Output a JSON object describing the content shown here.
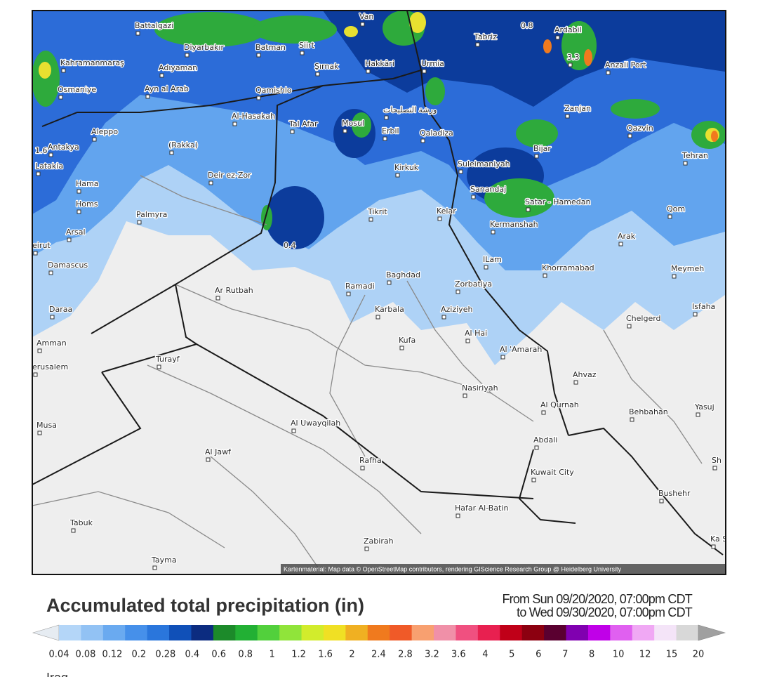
{
  "map": {
    "labels": [
      "Van",
      "Battalgazi",
      "Diyarbakır",
      "Batman",
      "Siirt",
      "Kahramanmaraş",
      "Adıyaman",
      "Şırnak",
      "Hakkâri",
      "Urmia",
      "Tabriz",
      "Ardabil",
      "3.3",
      "Anzali Port",
      "Osmaniye",
      "Ayn al Arab",
      "Qamishlo",
      "Al-Hasakah",
      "Tal Afar",
      "Mosul",
      "ورشة التصليحات",
      "Erbil",
      "Qaladiza",
      "Zanjan",
      "Qazvin",
      "Aleppo",
      "Antakya",
      "(Rakka)",
      "Bijar",
      "Tehran",
      "Latakia",
      "Kirkuk",
      "Suleimaniyah",
      "Deir ez-Zor",
      "Hama",
      "Sanandaj",
      "Homs",
      "Satar - Hamedan",
      "Qom",
      "Palmyra",
      "Tikrit",
      "Kelar",
      "Kermanshah",
      "Arsal",
      "Arak",
      "eirut",
      "Damascus",
      "ILam",
      "Khorramabad",
      "Meymeh",
      "Baghdad",
      "Ramadi",
      "Zorbatiya",
      "Ar Rutbah",
      "Isfaha",
      "Karbala",
      "Aziziyeh",
      "Daraa",
      "Chelgerd",
      "Al Hai",
      "Kufa",
      "Amman",
      "Al 'Amarah",
      "Turayf",
      "erusalem",
      "Ahvaz",
      "Nasiriyah",
      "Al Qurnah",
      "Behbahan",
      "Yasuj",
      "Al Uwayqilah",
      "Musa",
      "Abdali",
      "Al Jawf",
      "Rafha",
      "Sh",
      "Kuwait City",
      "Bushehr",
      "Hafar Al-Batin",
      "Tabuk",
      "Ka Se",
      "Zabirah",
      "Tayma",
      "0.8",
      "1.6",
      "0.4"
    ],
    "attribution": "Kartenmaterial: Map data © OpenStreetMap contributors, rendering GIScience Research Group @ Heidelberg University"
  },
  "legend": {
    "title": "Accumulated total precipitation (in)",
    "period_from": "From Sun 09/20/2020, 07:00pm CDT",
    "period_to": "to Wed 09/30/2020, 07:00pm CDT",
    "colors": [
      "#e6ecf2",
      "#b4d6f8",
      "#92c2f4",
      "#6aaaf0",
      "#4690ea",
      "#2a76dc",
      "#1050b8",
      "#0c2c80",
      "#1c8a2a",
      "#22b034",
      "#52d03c",
      "#90e43a",
      "#d2ec2c",
      "#f0e024",
      "#f0b022",
      "#f07a1e",
      "#f05a28",
      "#f8a070",
      "#f090a8",
      "#f05080",
      "#e82050",
      "#c00018",
      "#8c0010",
      "#5a0030",
      "#8000b0",
      "#c000e8",
      "#e060f0",
      "#f0a8f4",
      "#f4e4f8",
      "#d8d8d8",
      "#a0a0a0"
    ],
    "ticks": [
      "0.04",
      "0.08",
      "0.12",
      "0.2",
      "0.28",
      "0.4",
      "0.6",
      "0.8",
      "1",
      "1.2",
      "1.6",
      "2",
      "2.4",
      "2.8",
      "3.2",
      "3.6",
      "4",
      "5",
      "6",
      "7",
      "8",
      "10",
      "12",
      "15",
      "20"
    ]
  },
  "footer": "Iraq"
}
